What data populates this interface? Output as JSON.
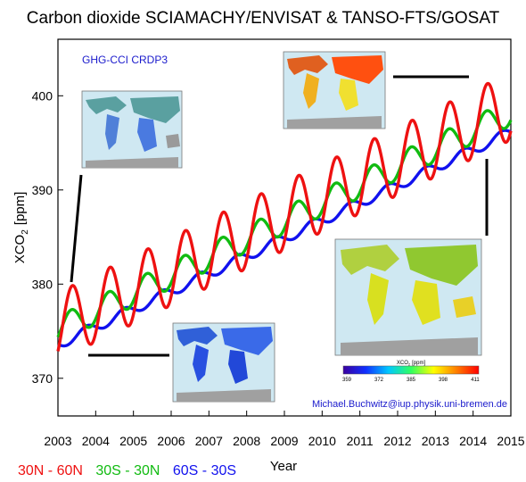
{
  "chart_data": {
    "type": "line",
    "title": "Carbon dioxide SCIAMACHY/ENVISAT & TANSO-FTS/GOSAT",
    "product_label": "GHG-CCI CRDP3",
    "credit": "Michael.Buchwitz@iup.physik.uni-bremen.de",
    "ylabel": "XCO₂ [ppm]",
    "ylabel_main": "XCO",
    "ylabel_sub": "2",
    "ylabel_unit": "[ppm]",
    "xlabel": "Year",
    "xlim": [
      2003,
      2015
    ],
    "ylim": [
      366,
      406
    ],
    "x_ticks": [
      "2003",
      "2004",
      "2005",
      "2006",
      "2007",
      "2008",
      "2009",
      "2010",
      "2011",
      "2012",
      "2013",
      "2014",
      "2015"
    ],
    "y_ticks": [
      "370",
      "380",
      "390",
      "400"
    ],
    "grid": false,
    "legend_position": "bottom-left",
    "series": [
      {
        "name": "30N - 60N",
        "color": "#ee1111",
        "start": 2003.0,
        "base": 375.5,
        "trend": 1.95,
        "amplitude": 3.6,
        "peak_phase": 0.38
      },
      {
        "name": "30S - 30N",
        "color": "#11bb11",
        "start": 2003.0,
        "base": 375.2,
        "trend": 1.92,
        "amplitude": 1.4,
        "peak_phase": 0.35
      },
      {
        "name": "60S - 30S",
        "color": "#1111ee",
        "start": 2003.0,
        "base": 373.6,
        "trend": 1.88,
        "amplitude": 0.55,
        "peak_phase": 0.75
      }
    ],
    "colorbar": {
      "label": "XCO₂ [ppm]",
      "label_main": "XCO",
      "label_sub": "2",
      "label_unit": "[ppm]",
      "ticks": [
        "359",
        "372",
        "385",
        "398",
        "411"
      ],
      "colors": [
        "#3a00a0",
        "#1030ff",
        "#00c8ff",
        "#30ff60",
        "#ffff00",
        "#ff8000",
        "#ff0000"
      ]
    }
  }
}
